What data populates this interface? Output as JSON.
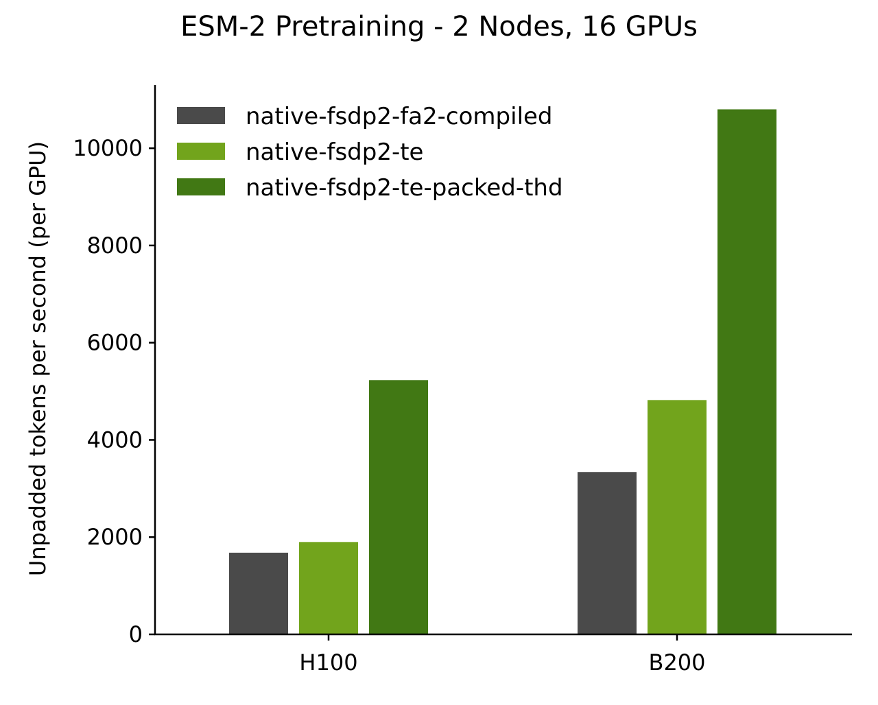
{
  "chart_data": {
    "type": "bar",
    "title": "ESM-2 Pretraining - 2 Nodes, 16 GPUs",
    "xlabel": "",
    "ylabel": "Unpadded tokens per second (per GPU)",
    "categories": [
      "H100",
      "B200"
    ],
    "series": [
      {
        "name": "native-fsdp2-fa2-compiled",
        "color": "#4a4a4a",
        "values": [
          1680,
          3340
        ]
      },
      {
        "name": "native-fsdp2-te",
        "color": "#72a41c",
        "values": [
          1900,
          4820
        ]
      },
      {
        "name": "native-fsdp2-te-packed-thd",
        "color": "#417814",
        "values": [
          5230,
          10800
        ]
      }
    ],
    "ylim": [
      0,
      11300
    ],
    "yticks": [
      0,
      2000,
      4000,
      6000,
      8000,
      10000
    ],
    "grid": false,
    "legend_position": "top-left"
  }
}
